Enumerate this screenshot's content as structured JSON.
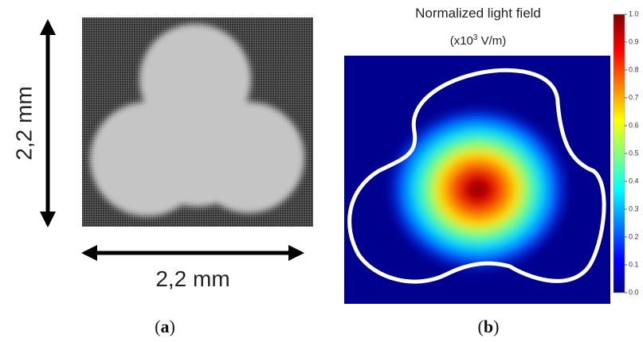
{
  "panel_a": {
    "height_label": "2,2 mm",
    "width_label": "2,2 mm",
    "caption": [
      "(",
      "a",
      ")"
    ]
  },
  "panel_b": {
    "title": "Normalized light field",
    "unit": [
      "(x10",
      "3",
      " V/m)"
    ],
    "colorbar_ticks": [
      "0.0",
      "0.1",
      "0.2",
      "0.3",
      "0.4",
      "0.5",
      "0.6",
      "0.7",
      "0.8",
      "0.9",
      "1.0"
    ],
    "caption": [
      "(",
      "b",
      ")"
    ]
  }
}
